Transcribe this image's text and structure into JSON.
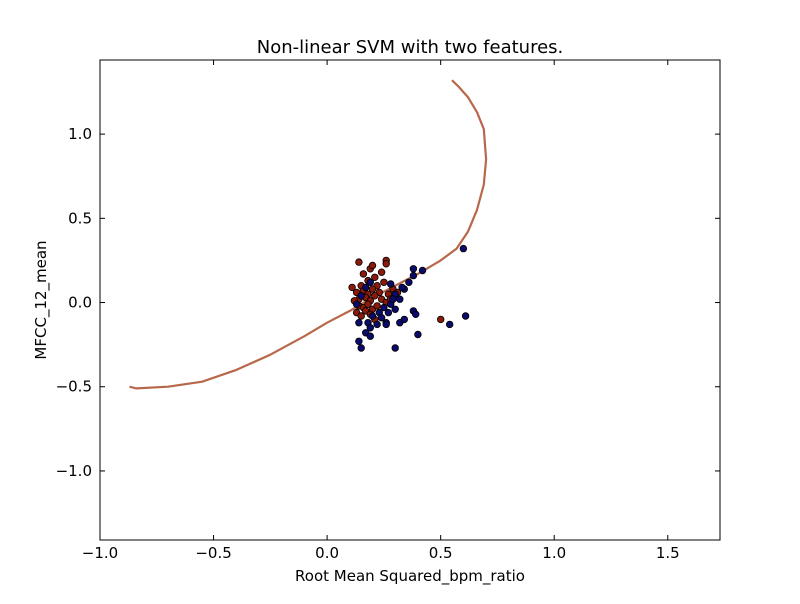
{
  "chart_data": {
    "type": "scatter",
    "title": "Non-linear SVM with two features.",
    "xlabel": "Root Mean Squared_bpm_ratio",
    "ylabel": "MFCC_12_mean",
    "xlim": [
      -1.0,
      1.73
    ],
    "ylim": [
      -1.41,
      1.44
    ],
    "xticks": [
      -1.0,
      -0.5,
      0.0,
      0.5,
      1.0,
      1.5
    ],
    "xtick_labels": [
      "−1.0",
      "−0.5",
      "0.0",
      "0.5",
      "1.0",
      "1.5"
    ],
    "yticks": [
      -1.0,
      -0.5,
      0.0,
      0.5,
      1.0
    ],
    "ytick_labels": [
      "−1.0",
      "−0.5",
      "0.0",
      "0.5",
      "1.0"
    ],
    "decision_boundary": {
      "color": "#b8684a",
      "x": [
        -0.87,
        -0.84,
        -0.7,
        -0.55,
        -0.4,
        -0.25,
        -0.1,
        0.0,
        0.1,
        0.2,
        0.3,
        0.4,
        0.5,
        0.57,
        0.62,
        0.66,
        0.69,
        0.7,
        0.69,
        0.66,
        0.62,
        0.58,
        0.55
      ],
      "y": [
        -0.5,
        -0.51,
        -0.5,
        -0.47,
        -0.4,
        -0.31,
        -0.2,
        -0.12,
        -0.05,
        0.03,
        0.1,
        0.17,
        0.25,
        0.32,
        0.42,
        0.55,
        0.7,
        0.85,
        1.03,
        1.13,
        1.22,
        1.28,
        1.32
      ]
    },
    "series": [
      {
        "name": "red class",
        "color": "#8b1a0a",
        "points": [
          [
            0.14,
            0.24
          ],
          [
            0.19,
            0.2
          ],
          [
            0.2,
            0.22
          ],
          [
            0.26,
            0.25
          ],
          [
            0.26,
            0.23
          ],
          [
            0.16,
            0.17
          ],
          [
            0.21,
            0.15
          ],
          [
            0.24,
            0.18
          ],
          [
            0.15,
            0.1
          ],
          [
            0.18,
            0.13
          ],
          [
            0.22,
            0.1
          ],
          [
            0.25,
            0.12
          ],
          [
            0.13,
            0.06
          ],
          [
            0.16,
            0.07
          ],
          [
            0.18,
            0.05
          ],
          [
            0.2,
            0.08
          ],
          [
            0.23,
            0.06
          ],
          [
            0.27,
            0.05
          ],
          [
            0.29,
            0.08
          ],
          [
            0.31,
            0.06
          ],
          [
            0.14,
            0.02
          ],
          [
            0.17,
            0.03
          ],
          [
            0.19,
            0.01
          ],
          [
            0.21,
            0.04
          ],
          [
            0.24,
            0.02
          ],
          [
            0.26,
            0.0
          ],
          [
            0.28,
            0.02
          ],
          [
            0.14,
            -0.02
          ],
          [
            0.16,
            -0.03
          ],
          [
            0.18,
            -0.01
          ],
          [
            0.2,
            -0.04
          ],
          [
            0.22,
            -0.02
          ],
          [
            0.13,
            -0.06
          ],
          [
            0.15,
            -0.08
          ],
          [
            0.17,
            -0.05
          ],
          [
            0.19,
            -0.07
          ],
          [
            0.21,
            -0.1
          ],
          [
            0.11,
            0.09
          ],
          [
            0.12,
            0.01
          ],
          [
            0.5,
            -0.1
          ]
        ]
      },
      {
        "name": "blue class",
        "color": "#0b0b6b",
        "points": [
          [
            0.6,
            0.32
          ],
          [
            0.38,
            0.2
          ],
          [
            0.42,
            0.19
          ],
          [
            0.38,
            0.16
          ],
          [
            0.36,
            0.12
          ],
          [
            0.34,
            0.08
          ],
          [
            0.3,
            0.05
          ],
          [
            0.32,
            0.02
          ],
          [
            0.28,
            -0.01
          ],
          [
            0.3,
            -0.04
          ],
          [
            0.25,
            -0.03
          ],
          [
            0.27,
            -0.06
          ],
          [
            0.23,
            -0.06
          ],
          [
            0.24,
            -0.09
          ],
          [
            0.2,
            -0.08
          ],
          [
            0.26,
            -0.12
          ],
          [
            0.22,
            -0.13
          ],
          [
            0.18,
            -0.12
          ],
          [
            0.19,
            -0.15
          ],
          [
            0.17,
            -0.18
          ],
          [
            0.19,
            -0.2
          ],
          [
            0.14,
            -0.23
          ],
          [
            0.15,
            -0.27
          ],
          [
            0.3,
            -0.27
          ],
          [
            0.26,
            -0.13
          ],
          [
            0.32,
            -0.12
          ],
          [
            0.34,
            -0.1
          ],
          [
            0.38,
            -0.05
          ],
          [
            0.39,
            -0.07
          ],
          [
            0.4,
            -0.19
          ],
          [
            0.54,
            -0.13
          ],
          [
            0.61,
            -0.08
          ],
          [
            0.13,
            -0.01
          ],
          [
            0.15,
            0.04
          ],
          [
            0.17,
            0.09
          ],
          [
            0.19,
            0.12
          ],
          [
            0.28,
            0.11
          ],
          [
            0.29,
            0.02
          ],
          [
            0.33,
            0.09
          ],
          [
            0.14,
            -0.12
          ]
        ]
      }
    ]
  }
}
